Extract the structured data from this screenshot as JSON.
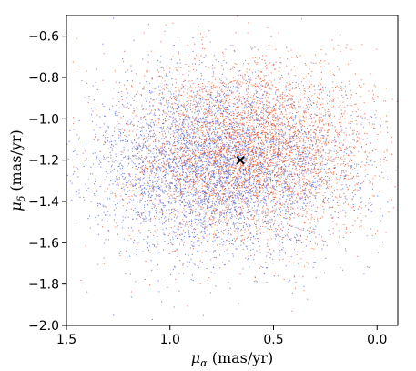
{
  "chart_data": {
    "type": "scatter",
    "title": "",
    "xlabel": {
      "symbol": "μ",
      "sub": "α",
      "unit": " (mas/yr)"
    },
    "ylabel": {
      "symbol": "μ",
      "sub": "δ",
      "unit": " (mas/yr)"
    },
    "xlim": [
      1.5,
      -0.1
    ],
    "ylim": [
      -2.0,
      -0.5
    ],
    "x_inverted": true,
    "xticks": [
      {
        "value": 1.5,
        "label": "1.5"
      },
      {
        "value": 1.0,
        "label": "1.0"
      },
      {
        "value": 0.5,
        "label": "0.5"
      },
      {
        "value": 0.0,
        "label": "0.0"
      }
    ],
    "yticks": [
      {
        "value": -2.0,
        "label": "−2.0"
      },
      {
        "value": -1.8,
        "label": "−1.8"
      },
      {
        "value": -1.6,
        "label": "−1.6"
      },
      {
        "value": -1.4,
        "label": "−1.4"
      },
      {
        "value": -1.2,
        "label": "−1.2"
      },
      {
        "value": -1.0,
        "label": "−1.0"
      },
      {
        "value": -0.8,
        "label": "−0.8"
      },
      {
        "value": -0.6,
        "label": "−0.6"
      }
    ],
    "grid": false,
    "legend": "none",
    "series": [
      {
        "color": "#4b63e0",
        "distribution": {
          "center_x": 0.78,
          "center_y": -1.23,
          "sigma_x": 0.3,
          "sigma_y": 0.21
        }
      },
      {
        "color": "#e8552a",
        "distribution": {
          "center_x": 0.62,
          "center_y": -1.15,
          "sigma_x": 0.3,
          "sigma_y": 0.22
        }
      }
    ],
    "marker": {
      "x": 0.66,
      "y": -1.2,
      "symbol": "×",
      "color": "#000000"
    }
  }
}
